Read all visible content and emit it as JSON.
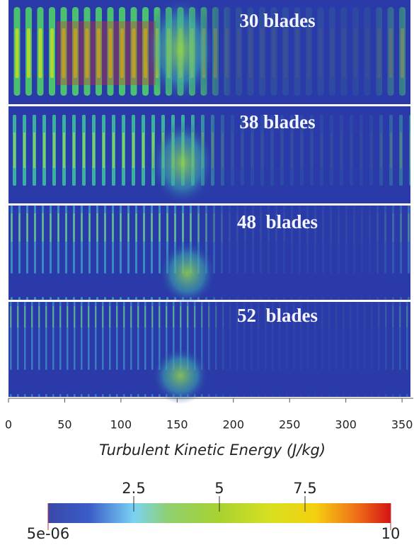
{
  "chart_data": {
    "type": "contour",
    "panels": [
      "30 blades",
      "38 blades",
      "48  blades",
      "52  blades"
    ],
    "xlim": [
      0,
      360
    ],
    "xticks": [
      0,
      50,
      100,
      150,
      200,
      250,
      300,
      350
    ],
    "colorbar": {
      "title": "Turbulent Kinetic Energy (J/kg)",
      "lim": [
        5e-06,
        10
      ],
      "ticks": [
        {
          "value": 5e-06,
          "label": "5e-06"
        },
        2.5,
        5,
        7.5,
        10
      ]
    }
  }
}
